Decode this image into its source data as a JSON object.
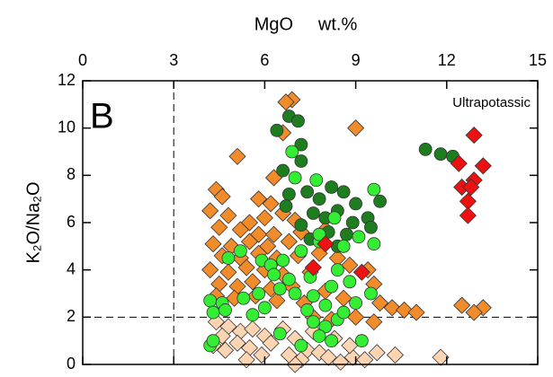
{
  "chart_data": {
    "type": "scatter",
    "title": "MgO     wt.%",
    "panel_label": "B",
    "annotation": "Ultrapotassic",
    "y_label": "K₂O/Na₂O",
    "xlim": [
      0,
      15
    ],
    "ylim": [
      0,
      12
    ],
    "xticks": [
      0,
      3,
      6,
      9,
      12,
      15
    ],
    "yticks": [
      0,
      2,
      4,
      6,
      8,
      10,
      12
    ],
    "xaxis_position": "top",
    "ref_x": [
      3
    ],
    "ref_y": [
      2
    ],
    "series": [
      {
        "color": "#fdd5b2",
        "marker": "diamond",
        "x": [
          4.4,
          4.8,
          5.2,
          5.6,
          6.0,
          4.3,
          4.7,
          5.1,
          5.5,
          6.2,
          6.6,
          7.0,
          7.4,
          7.2,
          7.8,
          8.1,
          8.5,
          8.9,
          9.3,
          9.7,
          10.3,
          7.0,
          11.8,
          8.3,
          6.8,
          5.9,
          4.6,
          5.4,
          7.6,
          8.8
        ],
        "y": [
          1.8,
          1.6,
          1.4,
          1.5,
          1.2,
          0.8,
          0.6,
          0.9,
          0.7,
          0.9,
          1.5,
          1.1,
          0.6,
          0.2,
          0.5,
          0.3,
          0.1,
          0.3,
          0.2,
          0.5,
          0.4,
          0.0,
          0.3,
          1.1,
          0.4,
          0.4,
          1.2,
          0.2,
          1.4,
          0.8
        ]
      },
      {
        "color": "#f28c2a",
        "marker": "diamond",
        "x": [
          6.9,
          6.7,
          5.1,
          6.6,
          9.0,
          6.3,
          4.4,
          4.6,
          5.8,
          6.2,
          4.2,
          4.8,
          5.5,
          6.0,
          6.6,
          7.0,
          4.5,
          5.2,
          5.8,
          6.3,
          7.2,
          8.0,
          4.3,
          4.9,
          5.5,
          6.1,
          6.8,
          4.6,
          5.2,
          5.8,
          6.4,
          7.1,
          7.8,
          8.4,
          4.2,
          4.8,
          5.4,
          6.0,
          6.6,
          7.5,
          8.8,
          9.4,
          4.5,
          5.1,
          5.6,
          6.2,
          6.9,
          8.0,
          9.6,
          4.4,
          5.0,
          5.7,
          6.4,
          7.3,
          8.6,
          9.8,
          10.2,
          10.6,
          11.0,
          12.5,
          13.2,
          12.9,
          7.6,
          8.2,
          9.0,
          9.6
        ],
        "y": [
          11.2,
          11.1,
          8.8,
          9.8,
          10.0,
          7.9,
          7.4,
          7.1,
          7.0,
          6.8,
          6.5,
          6.3,
          6.0,
          6.2,
          6.4,
          6.1,
          5.8,
          5.7,
          5.5,
          5.5,
          5.6,
          5.7,
          5.1,
          5.0,
          5.2,
          5.0,
          5.2,
          4.6,
          4.5,
          4.7,
          4.5,
          4.6,
          4.7,
          4.5,
          4.0,
          3.9,
          4.1,
          4.0,
          3.8,
          3.9,
          4.2,
          4.0,
          3.4,
          3.3,
          3.5,
          3.2,
          3.3,
          3.1,
          3.4,
          2.9,
          2.8,
          2.9,
          2.7,
          2.6,
          2.8,
          2.6,
          2.4,
          2.3,
          2.2,
          2.5,
          2.4,
          2.2,
          2.0,
          1.9,
          2.0,
          1.8
        ]
      },
      {
        "color": "#1e7d1e",
        "marker": "circle",
        "x": [
          6.4,
          6.8,
          7.1,
          7.2,
          7.2,
          6.6,
          6.8,
          7.4,
          7.8,
          8.2,
          8.6,
          9.0,
          7.6,
          8.0,
          8.4,
          8.9,
          9.4,
          9.8,
          7.2,
          8.1,
          8.7,
          9.5,
          11.3,
          11.8,
          12.2,
          7.5,
          8.4,
          6.7
        ],
        "y": [
          9.9,
          10.5,
          10.3,
          9.3,
          8.6,
          8.2,
          7.2,
          7.3,
          7.0,
          7.5,
          7.3,
          6.8,
          6.4,
          6.2,
          6.5,
          6.0,
          6.2,
          6.9,
          5.9,
          5.6,
          5.5,
          5.8,
          9.1,
          8.9,
          8.8,
          5.3,
          5.0,
          6.7
        ]
      },
      {
        "color": "#33ee33",
        "marker": "circle",
        "x": [
          6.9,
          5.2,
          4.8,
          5.9,
          6.2,
          6.6,
          7.2,
          7.8,
          8.6,
          9.1,
          9.6,
          6.3,
          6.8,
          7.5,
          8.4,
          8.8,
          5.8,
          6.5,
          7.0,
          7.6,
          8.2,
          9.5,
          4.2,
          4.6,
          5.3,
          6.0,
          7.4,
          8.0,
          9.0,
          4.3,
          4.7,
          5.6,
          7.6,
          8.0,
          8.4,
          7.8,
          8.2,
          6.5,
          7.2,
          4.2,
          4.3,
          9.2,
          8.6,
          9.6,
          7.0,
          7.7,
          8.3,
          7.8
        ],
        "y": [
          9.0,
          4.8,
          4.5,
          4.4,
          4.2,
          4.4,
          4.8,
          5.2,
          5.0,
          5.4,
          5.1,
          3.8,
          3.6,
          3.7,
          4.0,
          3.5,
          3.0,
          3.2,
          3.0,
          2.9,
          3.3,
          3.0,
          2.7,
          2.6,
          2.8,
          2.4,
          2.3,
          2.5,
          2.6,
          2.2,
          2.3,
          2.1,
          1.8,
          1.6,
          1.9,
          1.2,
          1.0,
          1.3,
          0.8,
          0.8,
          1.0,
          1.0,
          2.2,
          7.4,
          7.9,
          7.8,
          6.2,
          5.5
        ]
      },
      {
        "color": "#ee1111",
        "marker": "diamond",
        "x": [
          12.9,
          12.4,
          13.2,
          12.5,
          12.9,
          12.8,
          12.7,
          12.7,
          8.0,
          7.6,
          9.2
        ],
        "y": [
          9.7,
          8.5,
          8.4,
          7.5,
          7.8,
          7.5,
          6.9,
          6.3,
          5.1,
          4.1,
          3.9
        ]
      }
    ]
  }
}
